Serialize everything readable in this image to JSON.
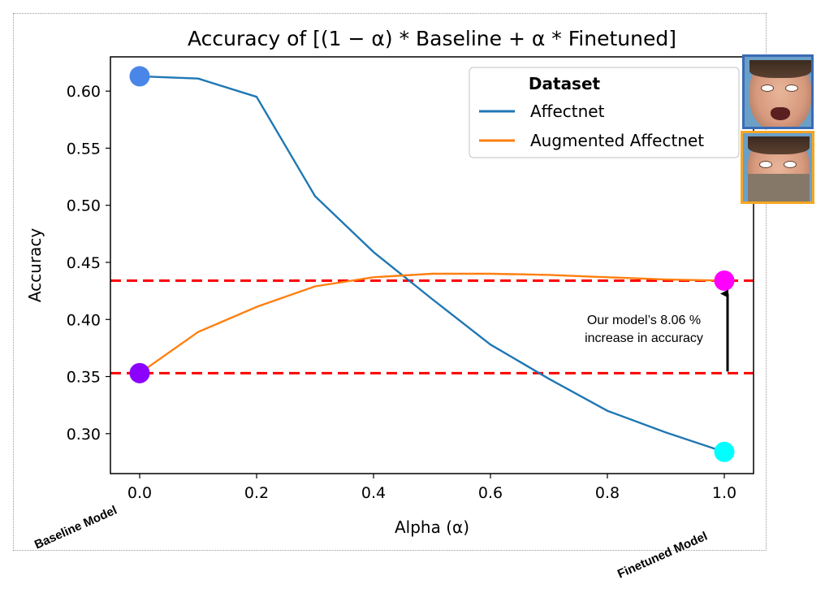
{
  "chart_data": {
    "type": "line",
    "title": "Accuracy of [(1 − α) * Baseline + α * Finetuned]",
    "xlabel": "Alpha (α)",
    "ylabel": "Accuracy",
    "xlim": [
      -0.05,
      1.05
    ],
    "ylim": [
      0.265,
      0.63
    ],
    "xticks": [
      0.0,
      0.2,
      0.4,
      0.6,
      0.8,
      1.0
    ],
    "xtick_labels": [
      "0.0",
      "0.2",
      "0.4",
      "0.6",
      "0.8",
      "1.0"
    ],
    "yticks": [
      0.3,
      0.35,
      0.4,
      0.45,
      0.5,
      0.55,
      0.6
    ],
    "ytick_labels": [
      "0.30",
      "0.35",
      "0.40",
      "0.45",
      "0.50",
      "0.55",
      "0.60"
    ],
    "x": [
      0.0,
      0.1,
      0.2,
      0.3,
      0.4,
      0.5,
      0.6,
      0.7,
      0.8,
      0.9,
      1.0
    ],
    "legend_title": "Dataset",
    "legend_position": "top-right",
    "series": [
      {
        "name": "Affectnet",
        "color": "#1f77b4",
        "values": [
          0.613,
          0.611,
          0.595,
          0.508,
          0.459,
          0.418,
          0.378,
          0.348,
          0.32,
          0.301,
          0.284
        ]
      },
      {
        "name": "Augmented Affectnet",
        "color": "#ff7f0e",
        "values": [
          0.353,
          0.389,
          0.411,
          0.429,
          0.437,
          0.44,
          0.44,
          0.439,
          0.437,
          0.435,
          0.434
        ]
      }
    ],
    "reference_lines": [
      {
        "y": 0.434,
        "color": "#ff0000",
        "style": "dashed"
      },
      {
        "y": 0.353,
        "color": "#ff0000",
        "style": "dashed"
      }
    ],
    "markers": [
      {
        "x": 0.0,
        "y": 0.613,
        "color": "#4a86e8"
      },
      {
        "x": 0.0,
        "y": 0.353,
        "color": "#8b00ff"
      },
      {
        "x": 1.0,
        "y": 0.434,
        "color": "#ff00ff"
      },
      {
        "x": 1.0,
        "y": 0.284,
        "color": "#00ffff"
      }
    ],
    "annotation": {
      "lines": [
        "Our model’s 8.06 %",
        "increase in accuracy"
      ],
      "arrow_from": 0.353,
      "arrow_to": 0.434
    }
  },
  "labels": {
    "baseline_model": "Baseline Model",
    "finetuned_model": "Finetuned Model"
  },
  "images": {
    "affectnet_face": "face-image",
    "augmented_face": "masked-face-image"
  }
}
